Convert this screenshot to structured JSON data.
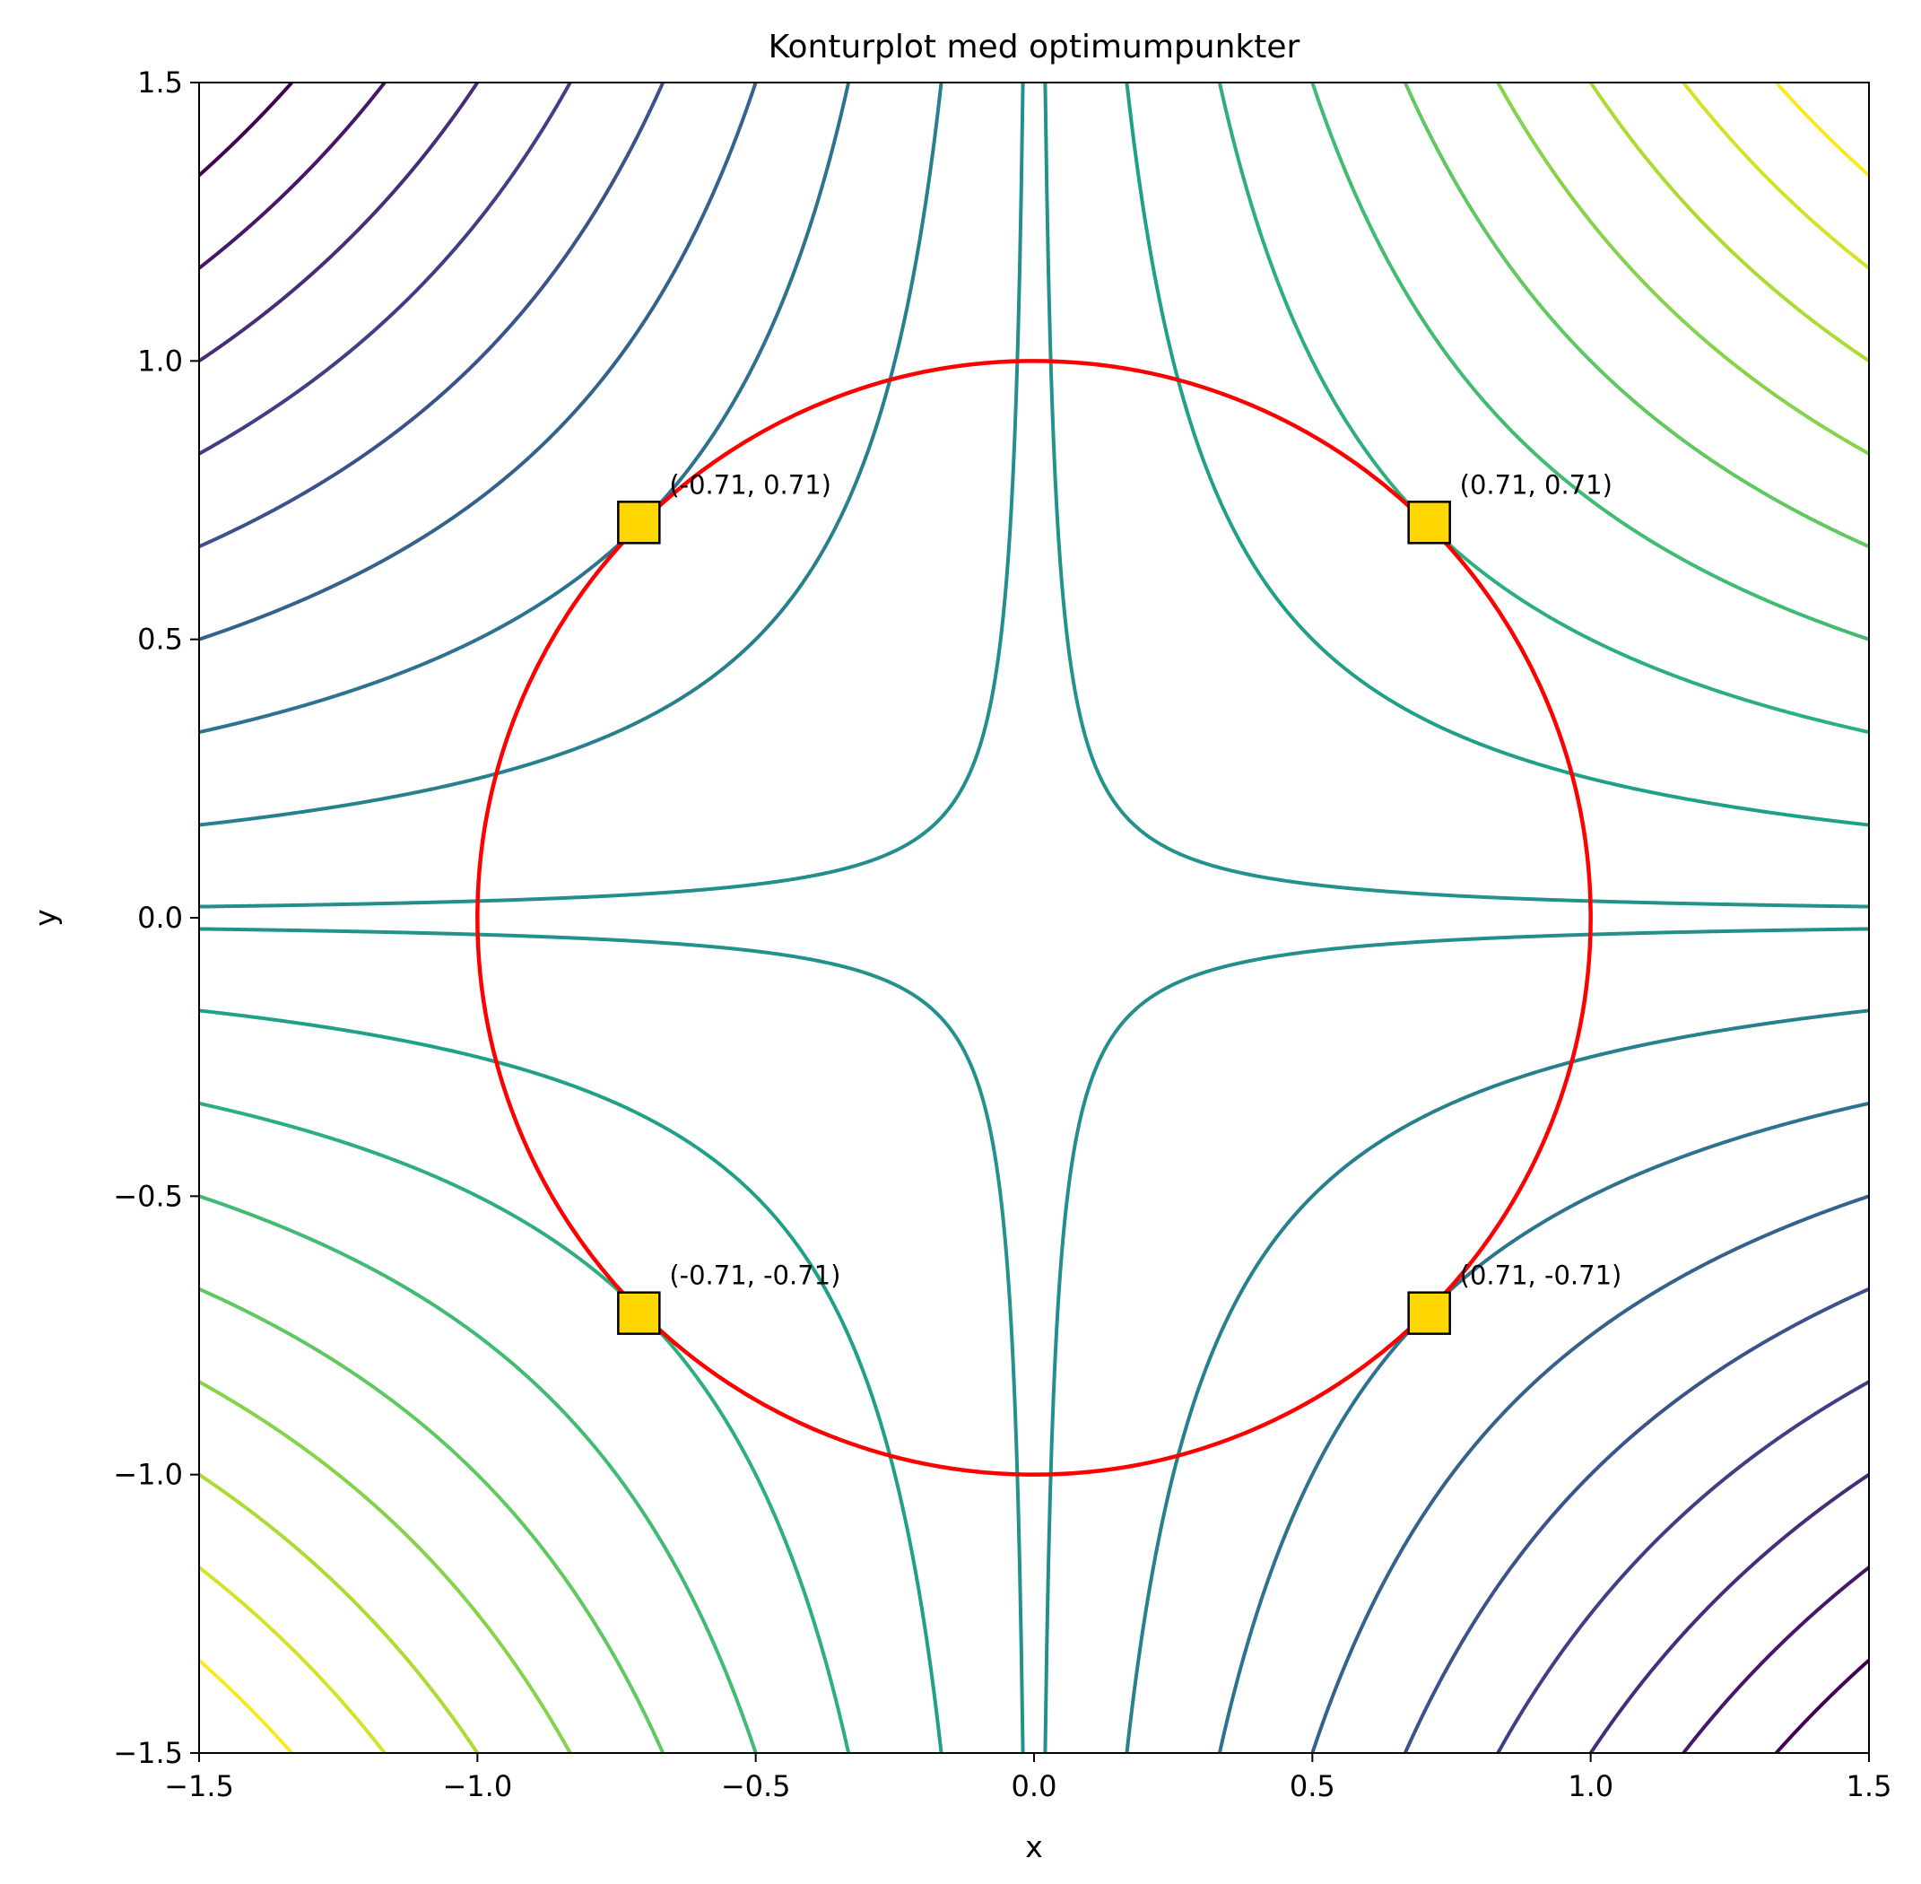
{
  "chart_data": {
    "type": "contour",
    "title": "Konturplot med optimumpunkter",
    "xlabel": "x",
    "ylabel": "y",
    "xlim": [
      -1.5,
      1.5
    ],
    "ylim": [
      -1.5,
      1.5
    ],
    "x_ticks": [
      "−1.5",
      "−1.0",
      "−0.5",
      "0.0",
      "0.5",
      "1.0",
      "1.5"
    ],
    "y_ticks": [
      "−1.5",
      "−1.0",
      "−0.5",
      "0.0",
      "0.5",
      "1.0",
      "1.5"
    ],
    "x_tick_values": [
      -1.5,
      -1.0,
      -0.5,
      0.0,
      0.5,
      1.0,
      1.5
    ],
    "y_tick_values": [
      -1.5,
      -1.0,
      -0.5,
      0.0,
      0.5,
      1.0,
      1.5
    ],
    "function": "f(x, y) = x * y",
    "contour_levels": [
      -2.0,
      -1.75,
      -1.5,
      -1.25,
      -1.0,
      -0.75,
      -0.5,
      -0.25,
      -0.03,
      0.03,
      0.25,
      0.5,
      0.75,
      1.0,
      1.25,
      1.5,
      1.75,
      2.0
    ],
    "colormap": "viridis",
    "constraint": {
      "shape": "circle",
      "center": [
        0,
        0
      ],
      "radius": 1.0,
      "color": "#ff0000"
    },
    "points": [
      {
        "x": -0.71,
        "y": 0.71,
        "label": "(-0.71, 0.71)"
      },
      {
        "x": 0.71,
        "y": 0.71,
        "label": "(0.71, 0.71)"
      },
      {
        "x": -0.71,
        "y": -0.71,
        "label": "(-0.71, -0.71)"
      },
      {
        "x": 0.71,
        "y": -0.71,
        "label": "(0.71, -0.71)"
      }
    ],
    "marker_color": "#ffd700",
    "grid": false,
    "legend": "none"
  }
}
